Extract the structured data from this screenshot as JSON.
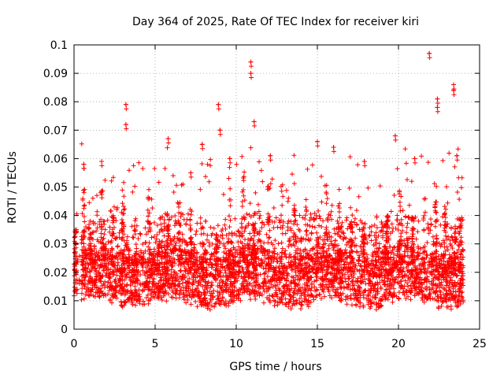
{
  "chart_data": {
    "type": "scatter",
    "title": "Day 364 of 2025, Rate Of TEC Index for receiver kiri",
    "xlabel": "GPS time / hours",
    "ylabel": "ROTI / TECUs",
    "xlim": [
      0,
      25
    ],
    "ylim": [
      0,
      0.1
    ],
    "x_ticks": [
      0,
      5,
      10,
      15,
      20,
      25
    ],
    "x_tick_labels": [
      "0",
      "5",
      "10",
      "15",
      "20",
      "25"
    ],
    "y_ticks": [
      0,
      0.01,
      0.02,
      0.03,
      0.04,
      0.05,
      0.06,
      0.07,
      0.08,
      0.09,
      0.1
    ],
    "y_tick_labels": [
      "0",
      "0.01",
      "0.02",
      "0.03",
      "0.04",
      "0.05",
      "0.06",
      "0.07",
      "0.08",
      "0.09",
      "0.1"
    ],
    "grid": true,
    "marker": "+",
    "color": "#ff0000",
    "data_coverage_hours": [
      0,
      24
    ],
    "typical_range": [
      0.005,
      0.03
    ],
    "notable_peaks": [
      {
        "x": 3.2,
        "y": 0.079
      },
      {
        "x": 3.2,
        "y": 0.072
      },
      {
        "x": 5.8,
        "y": 0.067
      },
      {
        "x": 8.9,
        "y": 0.079
      },
      {
        "x": 9.0,
        "y": 0.07
      },
      {
        "x": 10.9,
        "y": 0.094
      },
      {
        "x": 10.9,
        "y": 0.09
      },
      {
        "x": 11.1,
        "y": 0.073
      },
      {
        "x": 15.0,
        "y": 0.066
      },
      {
        "x": 16.0,
        "y": 0.064
      },
      {
        "x": 19.8,
        "y": 0.068
      },
      {
        "x": 21.9,
        "y": 0.097
      },
      {
        "x": 22.4,
        "y": 0.081
      },
      {
        "x": 22.4,
        "y": 0.078
      },
      {
        "x": 23.4,
        "y": 0.086
      },
      {
        "x": 23.4,
        "y": 0.084
      },
      {
        "x": 0.6,
        "y": 0.058
      },
      {
        "x": 1.7,
        "y": 0.059
      },
      {
        "x": 7.2,
        "y": 0.055
      },
      {
        "x": 7.9,
        "y": 0.065
      },
      {
        "x": 9.6,
        "y": 0.06
      },
      {
        "x": 12.1,
        "y": 0.061
      },
      {
        "x": 17.9,
        "y": 0.059
      },
      {
        "x": 21.0,
        "y": 0.06
      },
      {
        "x": 23.6,
        "y": 0.061
      }
    ]
  }
}
